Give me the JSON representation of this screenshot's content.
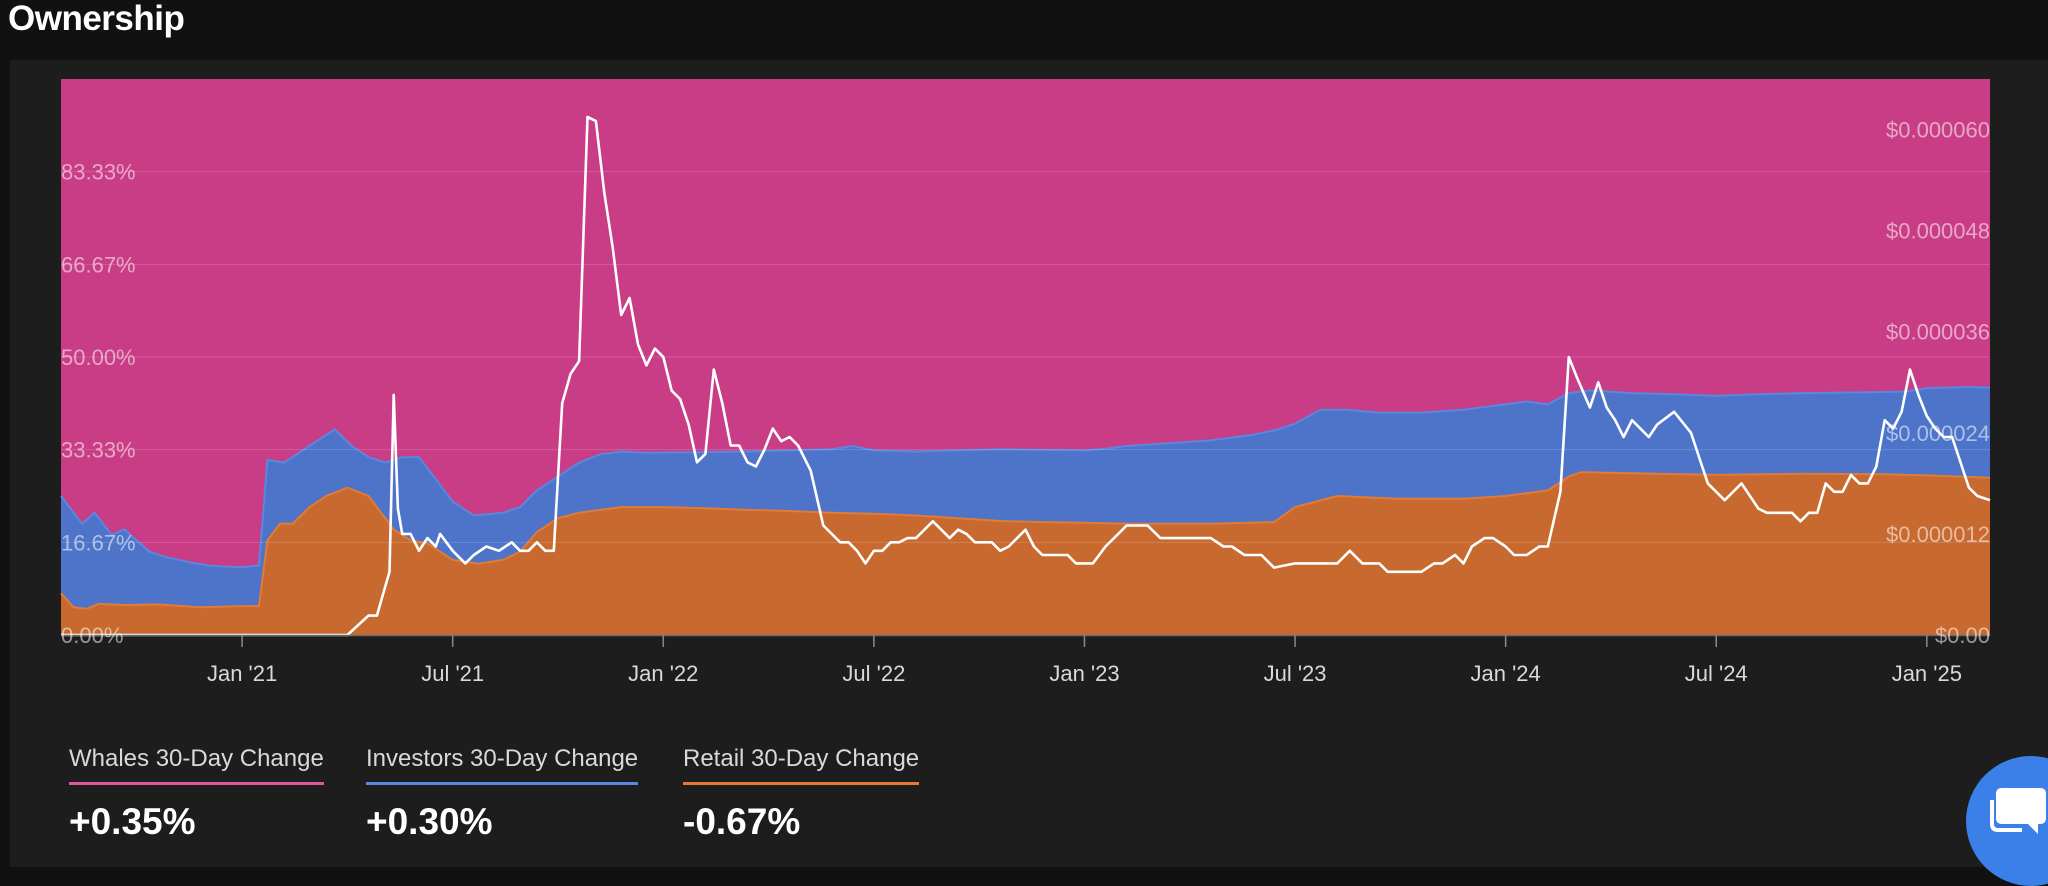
{
  "header": {
    "title": "Ownership"
  },
  "chart_data": {
    "type": "area",
    "stacked": true,
    "stack_total_percent": 100,
    "x_tick_labels": [
      "Jan '21",
      "Jul '21",
      "Jan '22",
      "Jul '22",
      "Jan '23",
      "Jul '23",
      "Jan '24",
      "Jul '24",
      "Jan '25"
    ],
    "x_ticks_t": [
      2021.0,
      2021.5,
      2022.0,
      2022.5,
      2023.0,
      2023.5,
      2024.0,
      2024.5,
      2025.0
    ],
    "x_range_t": [
      2020.57,
      2025.15
    ],
    "y_left": {
      "tick_labels": [
        "0.00%",
        "16.67%",
        "33.33%",
        "50.00%",
        "66.67%",
        "83.33%"
      ],
      "ticks": [
        0,
        16.67,
        33.33,
        50,
        66.67,
        83.33
      ],
      "range": [
        0,
        100
      ]
    },
    "y_right": {
      "tick_labels": [
        "$0.00",
        "$0.000012",
        "$0.000024",
        "$0.000036",
        "$0.000048",
        "$0.000060"
      ],
      "ticks": [
        0,
        12,
        24,
        36,
        48,
        60
      ],
      "range": [
        0,
        66
      ],
      "unit": "1e-6 USD"
    },
    "grid": true,
    "series": [
      {
        "name": "Retail",
        "color": "#c8692f",
        "points": [
          [
            2020.57,
            7.5
          ],
          [
            2020.6,
            5.0
          ],
          [
            2020.63,
            4.7
          ],
          [
            2020.66,
            5.6
          ],
          [
            2020.72,
            5.4
          ],
          [
            2020.8,
            5.5
          ],
          [
            2020.9,
            5.0
          ],
          [
            2021.0,
            5.2
          ],
          [
            2021.04,
            5.2
          ],
          [
            2021.06,
            17
          ],
          [
            2021.09,
            20
          ],
          [
            2021.12,
            20
          ],
          [
            2021.16,
            23
          ],
          [
            2021.2,
            25
          ],
          [
            2021.25,
            26.5
          ],
          [
            2021.3,
            25
          ],
          [
            2021.33,
            22
          ],
          [
            2021.36,
            19
          ],
          [
            2021.4,
            17
          ],
          [
            2021.44,
            16.5
          ],
          [
            2021.5,
            13.5
          ],
          [
            2021.56,
            12.8
          ],
          [
            2021.62,
            13.5
          ],
          [
            2021.66,
            15
          ],
          [
            2021.7,
            18.5
          ],
          [
            2021.75,
            21
          ],
          [
            2021.8,
            22
          ],
          [
            2021.9,
            23.0
          ],
          [
            2022.0,
            23.0
          ],
          [
            2022.1,
            22.8
          ],
          [
            2022.2,
            22.5
          ],
          [
            2022.3,
            22.3
          ],
          [
            2022.4,
            22.0
          ],
          [
            2022.5,
            21.8
          ],
          [
            2022.6,
            21.5
          ],
          [
            2022.7,
            21.0
          ],
          [
            2022.8,
            20.5
          ],
          [
            2022.9,
            20.3
          ],
          [
            2023.0,
            20.2
          ],
          [
            2023.1,
            20.0
          ],
          [
            2023.2,
            20.0
          ],
          [
            2023.3,
            20.0
          ],
          [
            2023.45,
            20.3
          ],
          [
            2023.5,
            23.0
          ],
          [
            2023.6,
            25.0
          ],
          [
            2023.75,
            24.5
          ],
          [
            2023.9,
            24.5
          ],
          [
            2024.0,
            25.0
          ],
          [
            2024.1,
            26.0
          ],
          [
            2024.15,
            28.5
          ],
          [
            2024.18,
            29.3
          ],
          [
            2024.3,
            29.1
          ],
          [
            2024.5,
            28.8
          ],
          [
            2024.7,
            29.0
          ],
          [
            2024.9,
            28.9
          ],
          [
            2025.0,
            28.7
          ],
          [
            2025.15,
            28.3
          ]
        ]
      },
      {
        "name": "Investors",
        "color": "#4d74c9",
        "points": [
          [
            2020.57,
            25
          ],
          [
            2020.59,
            23
          ],
          [
            2020.62,
            20
          ],
          [
            2020.65,
            22
          ],
          [
            2020.67,
            20
          ],
          [
            2020.69,
            18
          ],
          [
            2020.72,
            19
          ],
          [
            2020.75,
            17
          ],
          [
            2020.78,
            15
          ],
          [
            2020.82,
            14
          ],
          [
            2020.88,
            13
          ],
          [
            2020.92,
            12.5
          ],
          [
            2020.96,
            12.3
          ],
          [
            2021.0,
            12.2
          ],
          [
            2021.04,
            12.5
          ],
          [
            2021.06,
            31.5
          ],
          [
            2021.1,
            31
          ],
          [
            2021.14,
            33
          ],
          [
            2021.18,
            35
          ],
          [
            2021.22,
            37
          ],
          [
            2021.26,
            34
          ],
          [
            2021.3,
            32
          ],
          [
            2021.34,
            31
          ],
          [
            2021.38,
            32
          ],
          [
            2021.42,
            32
          ],
          [
            2021.46,
            28
          ],
          [
            2021.5,
            24
          ],
          [
            2021.55,
            21.5
          ],
          [
            2021.62,
            22
          ],
          [
            2021.66,
            23
          ],
          [
            2021.7,
            26
          ],
          [
            2021.74,
            28
          ],
          [
            2021.8,
            31
          ],
          [
            2021.85,
            32.5
          ],
          [
            2021.9,
            33.0
          ],
          [
            2021.95,
            32.8
          ],
          [
            2022.0,
            32.8
          ],
          [
            2022.1,
            32.9
          ],
          [
            2022.2,
            33.0
          ],
          [
            2022.3,
            33.2
          ],
          [
            2022.4,
            33.4
          ],
          [
            2022.45,
            34.0
          ],
          [
            2022.5,
            33.2
          ],
          [
            2022.6,
            33.0
          ],
          [
            2022.7,
            33.2
          ],
          [
            2022.8,
            33.4
          ],
          [
            2022.9,
            33.3
          ],
          [
            2023.0,
            33.2
          ],
          [
            2023.05,
            33.5
          ],
          [
            2023.1,
            34.0
          ],
          [
            2023.2,
            34.5
          ],
          [
            2023.3,
            35.0
          ],
          [
            2023.4,
            36.0
          ],
          [
            2023.46,
            37.0
          ],
          [
            2023.5,
            38.0
          ],
          [
            2023.56,
            40.5
          ],
          [
            2023.62,
            40.5
          ],
          [
            2023.7,
            40.0
          ],
          [
            2023.8,
            40.0
          ],
          [
            2023.9,
            40.5
          ],
          [
            2024.0,
            41.5
          ],
          [
            2024.05,
            42.0
          ],
          [
            2024.1,
            41.5
          ],
          [
            2024.15,
            43.5
          ],
          [
            2024.2,
            44.0
          ],
          [
            2024.3,
            43.5
          ],
          [
            2024.4,
            43.3
          ],
          [
            2024.5,
            43.0
          ],
          [
            2024.6,
            43.3
          ],
          [
            2024.7,
            43.5
          ],
          [
            2024.8,
            43.6
          ],
          [
            2024.9,
            43.7
          ],
          [
            2024.95,
            43.8
          ],
          [
            2025.0,
            44.4
          ],
          [
            2025.1,
            44.6
          ],
          [
            2025.15,
            44.5
          ]
        ]
      },
      {
        "name": "Whales",
        "color": "#c93d86",
        "points": [
          [
            2020.57,
            100
          ],
          [
            2025.15,
            100
          ]
        ]
      }
    ],
    "price_line": {
      "color": "#ffffff",
      "points": [
        [
          2020.57,
          0
        ],
        [
          2021.25,
          0
        ],
        [
          2021.3,
          2.3
        ],
        [
          2021.32,
          2.3
        ],
        [
          2021.35,
          7.5
        ],
        [
          2021.36,
          28.5
        ],
        [
          2021.37,
          15
        ],
        [
          2021.38,
          12
        ],
        [
          2021.4,
          12
        ],
        [
          2021.42,
          10
        ],
        [
          2021.44,
          11.5
        ],
        [
          2021.46,
          10.5
        ],
        [
          2021.47,
          12
        ],
        [
          2021.5,
          10
        ],
        [
          2021.53,
          8.5
        ],
        [
          2021.55,
          9.5
        ],
        [
          2021.58,
          10.5
        ],
        [
          2021.61,
          10
        ],
        [
          2021.64,
          11
        ],
        [
          2021.66,
          10
        ],
        [
          2021.68,
          10
        ],
        [
          2021.7,
          11
        ],
        [
          2021.72,
          10
        ],
        [
          2021.74,
          10
        ],
        [
          2021.76,
          27.5
        ],
        [
          2021.78,
          31
        ],
        [
          2021.8,
          32.5
        ],
        [
          2021.82,
          61.5
        ],
        [
          2021.84,
          61
        ],
        [
          2021.86,
          52.5
        ],
        [
          2021.88,
          46
        ],
        [
          2021.9,
          38
        ],
        [
          2021.92,
          40
        ],
        [
          2021.94,
          34.5
        ],
        [
          2021.96,
          32
        ],
        [
          2021.98,
          34
        ],
        [
          2022.0,
          33
        ],
        [
          2022.02,
          29
        ],
        [
          2022.04,
          28
        ],
        [
          2022.06,
          25
        ],
        [
          2022.08,
          20.5
        ],
        [
          2022.1,
          21.5
        ],
        [
          2022.12,
          31.5
        ],
        [
          2022.14,
          27.5
        ],
        [
          2022.16,
          22.5
        ],
        [
          2022.18,
          22.5
        ],
        [
          2022.2,
          20.5
        ],
        [
          2022.22,
          20
        ],
        [
          2022.24,
          22
        ],
        [
          2022.26,
          24.5
        ],
        [
          2022.28,
          23
        ],
        [
          2022.3,
          23.5
        ],
        [
          2022.32,
          22.5
        ],
        [
          2022.35,
          19.5
        ],
        [
          2022.38,
          13
        ],
        [
          2022.42,
          11
        ],
        [
          2022.44,
          11
        ],
        [
          2022.46,
          10
        ],
        [
          2022.48,
          8.5
        ],
        [
          2022.5,
          10
        ],
        [
          2022.52,
          10
        ],
        [
          2022.54,
          11
        ],
        [
          2022.56,
          11
        ],
        [
          2022.58,
          11.5
        ],
        [
          2022.6,
          11.5
        ],
        [
          2022.62,
          12.5
        ],
        [
          2022.64,
          13.5
        ],
        [
          2022.66,
          12.5
        ],
        [
          2022.68,
          11.5
        ],
        [
          2022.7,
          12.5
        ],
        [
          2022.72,
          12
        ],
        [
          2022.74,
          11
        ],
        [
          2022.76,
          11
        ],
        [
          2022.78,
          11
        ],
        [
          2022.8,
          10
        ],
        [
          2022.82,
          10.5
        ],
        [
          2022.84,
          11.5
        ],
        [
          2022.86,
          12.5
        ],
        [
          2022.88,
          10.5
        ],
        [
          2022.9,
          9.5
        ],
        [
          2022.94,
          9.5
        ],
        [
          2022.96,
          9.5
        ],
        [
          2022.98,
          8.5
        ],
        [
          2023.02,
          8.5
        ],
        [
          2023.05,
          10.5
        ],
        [
          2023.08,
          12
        ],
        [
          2023.1,
          13
        ],
        [
          2023.15,
          13
        ],
        [
          2023.18,
          11.5
        ],
        [
          2023.22,
          11.5
        ],
        [
          2023.3,
          11.5
        ],
        [
          2023.33,
          10.5
        ],
        [
          2023.35,
          10.5
        ],
        [
          2023.38,
          9.5
        ],
        [
          2023.42,
          9.5
        ],
        [
          2023.45,
          8
        ],
        [
          2023.5,
          8.5
        ],
        [
          2023.55,
          8.5
        ],
        [
          2023.6,
          8.5
        ],
        [
          2023.63,
          10
        ],
        [
          2023.66,
          8.5
        ],
        [
          2023.7,
          8.5
        ],
        [
          2023.72,
          7.5
        ],
        [
          2023.8,
          7.5
        ],
        [
          2023.83,
          8.5
        ],
        [
          2023.85,
          8.5
        ],
        [
          2023.88,
          9.5
        ],
        [
          2023.9,
          8.5
        ],
        [
          2023.92,
          10.5
        ],
        [
          2023.95,
          11.5
        ],
        [
          2023.97,
          11.5
        ],
        [
          2024.0,
          10.5
        ],
        [
          2024.02,
          9.5
        ],
        [
          2024.05,
          9.5
        ],
        [
          2024.08,
          10.5
        ],
        [
          2024.1,
          10.5
        ],
        [
          2024.13,
          17
        ],
        [
          2024.15,
          33
        ],
        [
          2024.17,
          30.5
        ],
        [
          2024.2,
          27
        ],
        [
          2024.22,
          30
        ],
        [
          2024.24,
          27
        ],
        [
          2024.26,
          25.5
        ],
        [
          2024.28,
          23.5
        ],
        [
          2024.3,
          25.5
        ],
        [
          2024.32,
          24.5
        ],
        [
          2024.34,
          23.5
        ],
        [
          2024.36,
          25
        ],
        [
          2024.4,
          26.5
        ],
        [
          2024.44,
          24
        ],
        [
          2024.46,
          21
        ],
        [
          2024.48,
          18
        ],
        [
          2024.5,
          17
        ],
        [
          2024.52,
          16
        ],
        [
          2024.54,
          17
        ],
        [
          2024.56,
          18
        ],
        [
          2024.6,
          15
        ],
        [
          2024.62,
          14.5
        ],
        [
          2024.65,
          14.5
        ],
        [
          2024.68,
          14.5
        ],
        [
          2024.7,
          13.5
        ],
        [
          2024.72,
          14.5
        ],
        [
          2024.74,
          14.5
        ],
        [
          2024.76,
          18
        ],
        [
          2024.78,
          17
        ],
        [
          2024.8,
          17
        ],
        [
          2024.82,
          19
        ],
        [
          2024.84,
          18
        ],
        [
          2024.86,
          18
        ],
        [
          2024.88,
          20
        ],
        [
          2024.9,
          25.5
        ],
        [
          2024.92,
          24.5
        ],
        [
          2024.94,
          26.5
        ],
        [
          2024.96,
          31.5
        ],
        [
          2024.98,
          28.5
        ],
        [
          2025.0,
          26
        ],
        [
          2025.02,
          24.5
        ],
        [
          2025.04,
          23.5
        ],
        [
          2025.06,
          23.5
        ],
        [
          2025.08,
          20.5
        ],
        [
          2025.1,
          17.5
        ],
        [
          2025.12,
          16.5
        ],
        [
          2025.15,
          16
        ]
      ]
    }
  },
  "stats": [
    {
      "label": "Whales 30-Day Change",
      "value": "+0.35%",
      "color": "#e0579e"
    },
    {
      "label": "Investors 30-Day Change",
      "value": "+0.30%",
      "color": "#5a87e0"
    },
    {
      "label": "Retail 30-Day Change",
      "value": "-0.67%",
      "color": "#e27b35"
    }
  ],
  "chat_button": {
    "icon": "chat-bubble-icon",
    "color": "#3a80e8"
  }
}
